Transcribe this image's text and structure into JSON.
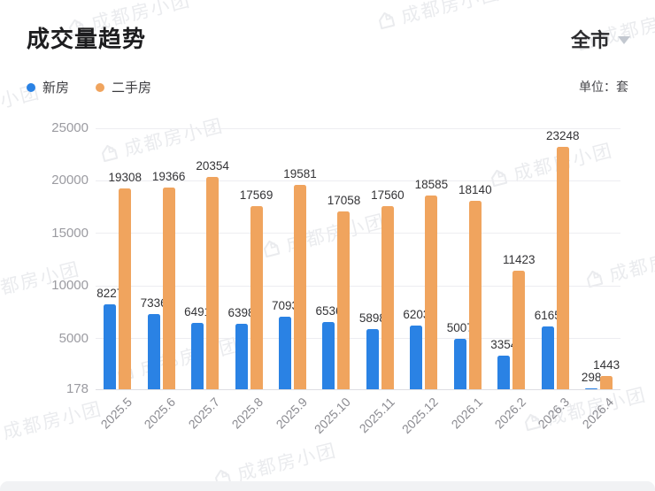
{
  "header": {
    "title": "成交量趋势",
    "region_selector": {
      "label": "全市"
    },
    "unit_label": "单位：套"
  },
  "legend": [
    {
      "label": "新房",
      "color": "#2a82e4"
    },
    {
      "label": "二手房",
      "color": "#f0a45e"
    }
  ],
  "watermark": {
    "text": "成都房小团"
  },
  "chart_data": {
    "type": "bar",
    "title": "成交量趋势",
    "unit": "套",
    "categories": [
      "2025.5",
      "2025.6",
      "2025.7",
      "2025.8",
      "2025.9",
      "2025.10",
      "2025.11",
      "2025.12",
      "2026.1",
      "2026.2",
      "2026.3",
      "2026.4"
    ],
    "series": [
      {
        "name": "新房",
        "color": "#2a82e4",
        "values": [
          8227,
          7336,
          6491,
          6398,
          7093,
          6536,
          5898,
          6203,
          5007,
          3354,
          6165,
          298
        ]
      },
      {
        "name": "二手房",
        "color": "#f0a45e",
        "values": [
          19308,
          19366,
          20354,
          17569,
          19581,
          17058,
          17560,
          18585,
          18140,
          11423,
          23248,
          1443
        ]
      }
    ],
    "yticks": [
      178,
      5000,
      10000,
      15000,
      20000,
      25000
    ],
    "ylim": [
      178,
      25000
    ],
    "grid": true,
    "legend_position": "top-left",
    "value_labels": true,
    "xlabel": "",
    "ylabel": ""
  }
}
